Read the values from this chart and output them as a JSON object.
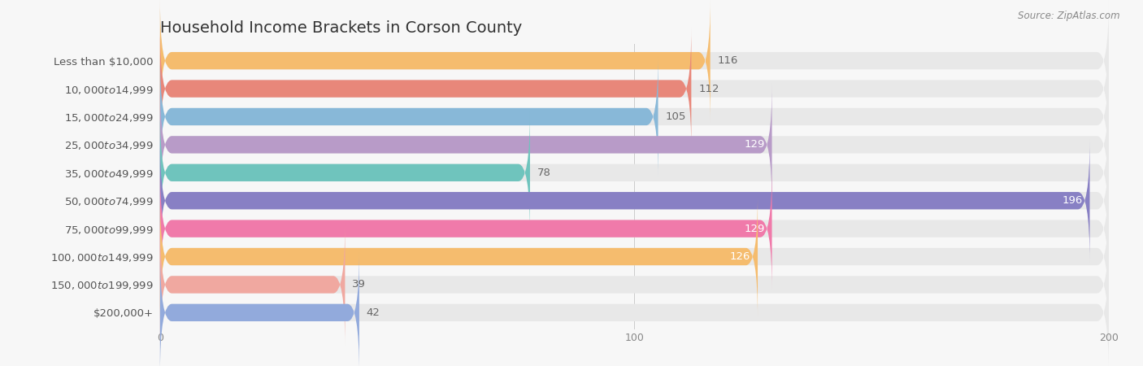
{
  "title": "Household Income Brackets in Corson County",
  "source": "Source: ZipAtlas.com",
  "categories": [
    "Less than $10,000",
    "$10,000 to $14,999",
    "$15,000 to $24,999",
    "$25,000 to $34,999",
    "$35,000 to $49,999",
    "$50,000 to $74,999",
    "$75,000 to $99,999",
    "$100,000 to $149,999",
    "$150,000 to $199,999",
    "$200,000+"
  ],
  "values": [
    116,
    112,
    105,
    129,
    78,
    196,
    129,
    126,
    39,
    42
  ],
  "bar_colors": [
    "#F5BC6E",
    "#E8877A",
    "#88B8D8",
    "#B89BC8",
    "#6FC4BD",
    "#8880C4",
    "#F07AAA",
    "#F5BC6E",
    "#F0A8A0",
    "#92AADC"
  ],
  "value_inside": [
    false,
    false,
    false,
    true,
    false,
    true,
    true,
    true,
    false,
    false
  ],
  "xlim": [
    0,
    200
  ],
  "xticks": [
    0,
    100,
    200
  ],
  "background_color": "#f7f7f7",
  "bar_background_color": "#e8e8e8",
  "title_fontsize": 14,
  "label_fontsize": 9.5,
  "value_fontsize": 9.5,
  "tick_fontsize": 9,
  "source_fontsize": 8.5
}
